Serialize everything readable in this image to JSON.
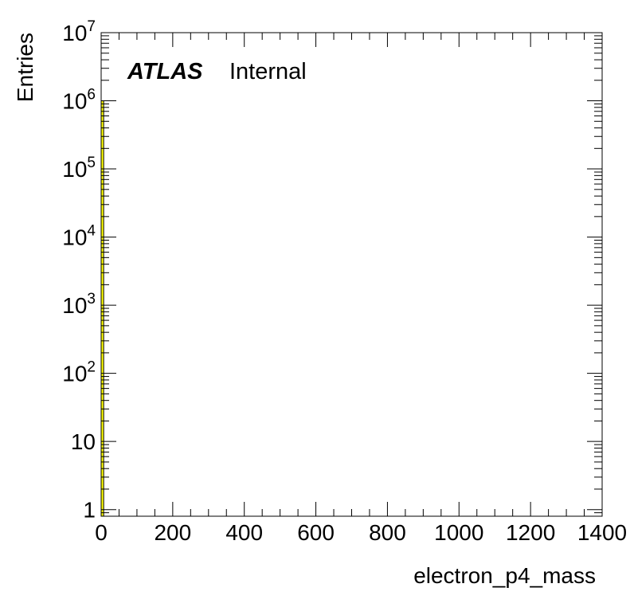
{
  "chart_data": {
    "type": "bar",
    "bars": [
      {
        "x_low": 0,
        "x_high": 7,
        "value": 1000000
      }
    ],
    "xlabel": "electron_p4_mass",
    "ylabel": "Entries",
    "xlim": [
      0,
      1400
    ],
    "ylim": [
      0.8,
      10000000
    ],
    "y_scale": "log",
    "grid": false,
    "fill_color": "#ffff00",
    "frame_color": "#000000",
    "x_ticks": [
      {
        "value": 0,
        "label": "0"
      },
      {
        "value": 200,
        "label": "200"
      },
      {
        "value": 400,
        "label": "400"
      },
      {
        "value": 600,
        "label": "600"
      },
      {
        "value": 800,
        "label": "800"
      },
      {
        "value": 1000,
        "label": "1000"
      },
      {
        "value": 1200,
        "label": "1200"
      },
      {
        "value": 1400,
        "label": "1400"
      }
    ],
    "y_ticks": [
      {
        "value": 1,
        "base": "1",
        "exp": ""
      },
      {
        "value": 10,
        "base": "10",
        "exp": ""
      },
      {
        "value": 100,
        "base": "10",
        "exp": "2"
      },
      {
        "value": 1000,
        "base": "10",
        "exp": "3"
      },
      {
        "value": 10000,
        "base": "10",
        "exp": "4"
      },
      {
        "value": 100000,
        "base": "10",
        "exp": "5"
      },
      {
        "value": 1000000,
        "base": "10",
        "exp": "6"
      },
      {
        "value": 10000000,
        "base": "10",
        "exp": "7"
      }
    ],
    "annotation": {
      "experiment": "ATLAS",
      "status": "Internal"
    }
  }
}
